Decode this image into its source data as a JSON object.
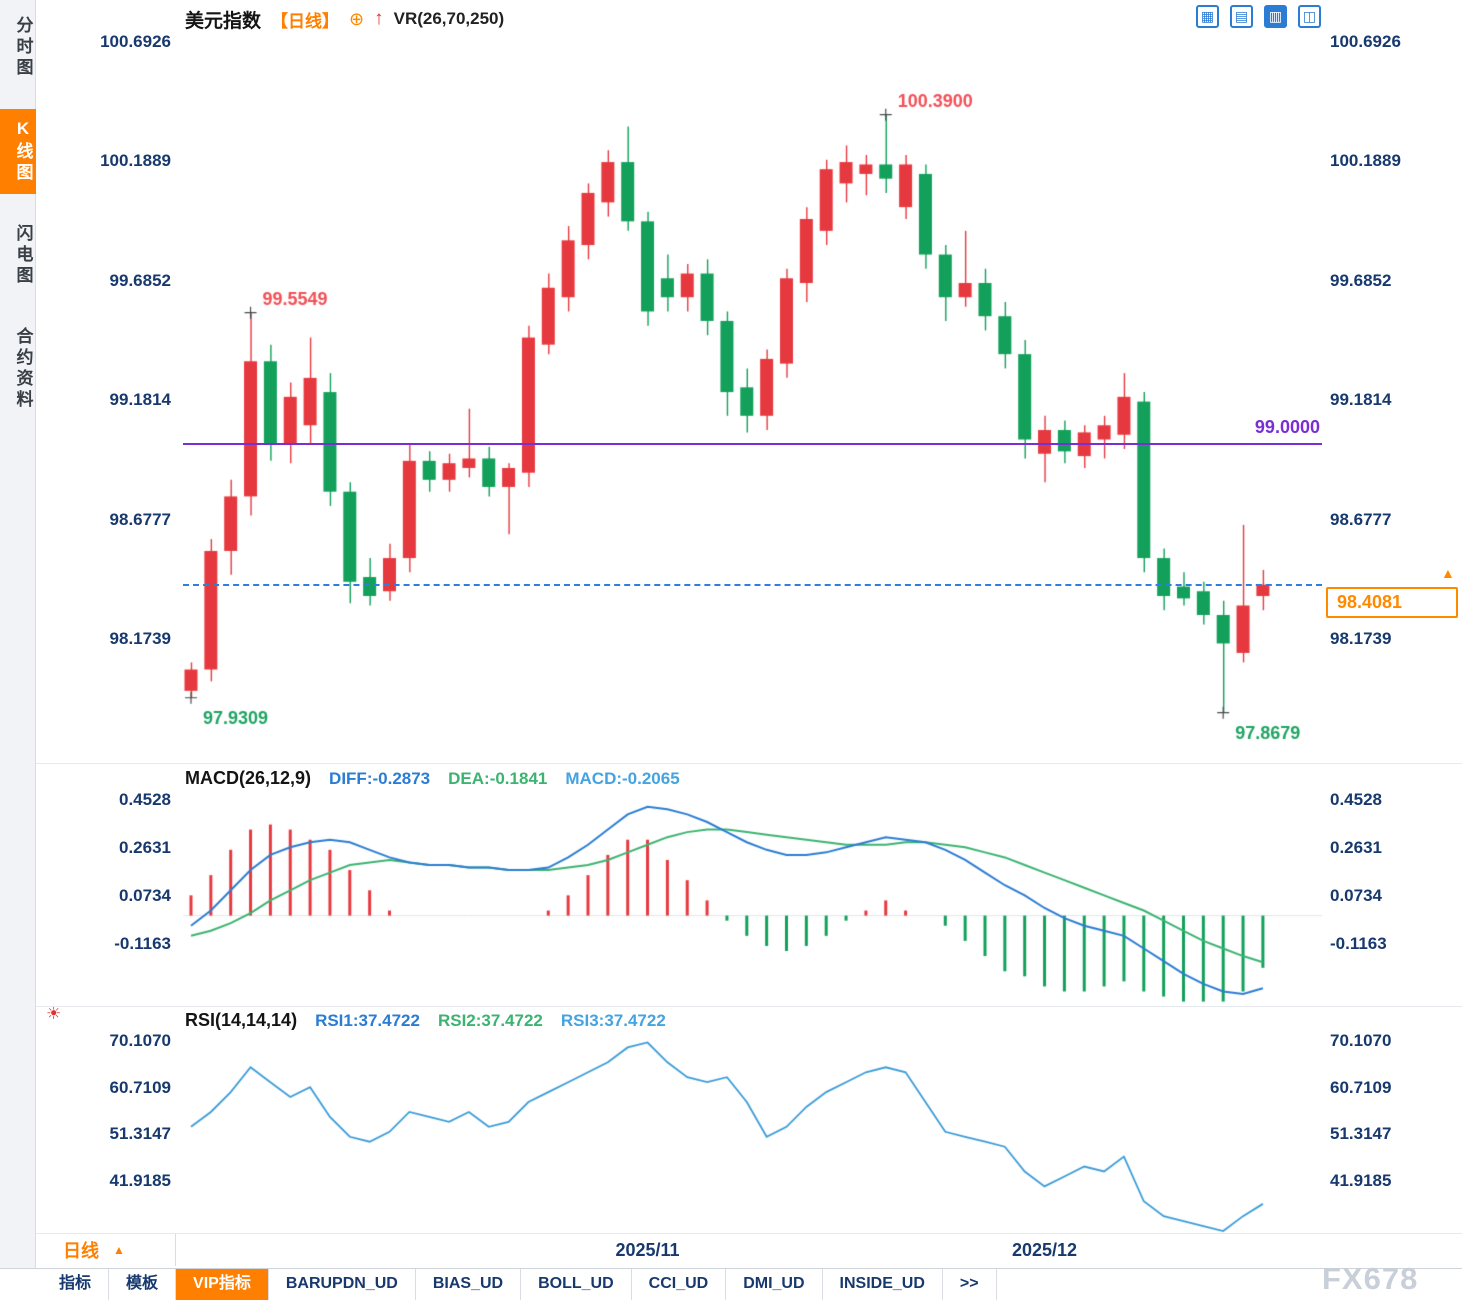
{
  "sidebar": {
    "items": [
      {
        "key": "intraday",
        "label": "分时图",
        "active": false
      },
      {
        "key": "kline",
        "label": "K线图",
        "active": true
      },
      {
        "key": "flash",
        "label": "闪电图",
        "active": false
      },
      {
        "key": "contract-info",
        "label": "合约资料",
        "active": false
      }
    ]
  },
  "header": {
    "title": "美元指数",
    "period_tag": "【日线】",
    "plus_icon": "⊕",
    "arrow_icon": "↑",
    "vr_label": "VR(26,70,250)"
  },
  "toolbar": {
    "icons": [
      {
        "key": "layout-grid",
        "glyph": "▦",
        "active": false
      },
      {
        "key": "layout-rows",
        "glyph": "▤",
        "active": false
      },
      {
        "key": "layout-chart",
        "glyph": "▥",
        "active": true
      },
      {
        "key": "layout-columns",
        "glyph": "◫",
        "active": false
      }
    ]
  },
  "price_overlay": {
    "purple_line": {
      "value": 99.0,
      "label": "99.0000"
    },
    "last_price": {
      "value": 98.4081,
      "label": "98.4081",
      "arrow": "▲"
    }
  },
  "footer": {
    "period_selector": {
      "label": "日线",
      "arrow": "▲"
    },
    "tabs": [
      {
        "label": "指标",
        "active": false
      },
      {
        "label": "模板",
        "active": false
      },
      {
        "label": "VIP指标",
        "active": true
      },
      {
        "label": "BARUPDN_UD",
        "active": false
      },
      {
        "label": "BIAS_UD",
        "active": false
      },
      {
        "label": "BOLL_UD",
        "active": false
      },
      {
        "label": "CCI_UD",
        "active": false
      },
      {
        "label": "DMI_UD",
        "active": false
      },
      {
        "label": "INSIDE_UD",
        "active": false
      },
      {
        "label": ">>",
        "active": false
      }
    ],
    "watermark": "FX678"
  },
  "misc": {
    "sun_icon": "☀"
  },
  "colors": {
    "candle_up": "#e6393f",
    "candle_down": "#12a05a",
    "diff_line": "#2b7cd3",
    "dea_line": "#3cb371",
    "rsi_line": "#3b9bd8",
    "axis_text": "#17396e",
    "accent_orange": "#ff7f00",
    "purple_line": "#7a2fd6",
    "dashed_line": "#2e7ee0",
    "annotation_up": "#f25056",
    "annotation_down": "#1fa463"
  },
  "chart_data": [
    {
      "type": "candlestick",
      "name": "美元指数 日线",
      "y_ticks": [
        "100.6926",
        "100.1889",
        "99.6852",
        "99.1814",
        "98.6777",
        "98.1739"
      ],
      "ylim": [
        97.66,
        100.747
      ],
      "x_labels": [
        {
          "label": "2025/11",
          "index": 23
        },
        {
          "label": "2025/12",
          "index": 43
        }
      ],
      "hlines": [
        {
          "value": 99.0,
          "label": "99.0000",
          "style": "solid"
        },
        {
          "value": 98.4081,
          "label": "98.4081",
          "style": "dashed"
        }
      ],
      "annotations": [
        {
          "label": "99.5549",
          "index": 3,
          "at": "high",
          "role": "up"
        },
        {
          "label": "100.3900",
          "index": 35,
          "at": "high",
          "role": "up"
        },
        {
          "label": "97.9309",
          "index": 0,
          "at": "low",
          "role": "down"
        },
        {
          "label": "97.8679",
          "index": 52,
          "at": "low",
          "role": "down"
        }
      ],
      "candles": [
        [
          97.96,
          98.08,
          97.9309,
          98.05
        ],
        [
          98.05,
          98.6,
          98.0,
          98.55
        ],
        [
          98.55,
          98.85,
          98.45,
          98.78
        ],
        [
          98.78,
          99.5549,
          98.7,
          99.35
        ],
        [
          99.35,
          99.42,
          98.93,
          99.0
        ],
        [
          99.0,
          99.26,
          98.92,
          99.2
        ],
        [
          99.08,
          99.45,
          99.0,
          99.28
        ],
        [
          99.22,
          99.3,
          98.74,
          98.8
        ],
        [
          98.8,
          98.84,
          98.33,
          98.42
        ],
        [
          98.44,
          98.52,
          98.32,
          98.36
        ],
        [
          98.38,
          98.58,
          98.34,
          98.52
        ],
        [
          98.52,
          99.0,
          98.46,
          98.93
        ],
        [
          98.93,
          98.97,
          98.8,
          98.85
        ],
        [
          98.85,
          98.96,
          98.8,
          98.92
        ],
        [
          98.9,
          99.15,
          98.86,
          98.94
        ],
        [
          98.94,
          98.99,
          98.78,
          98.82
        ],
        [
          98.82,
          98.92,
          98.62,
          98.9
        ],
        [
          98.88,
          99.5,
          98.82,
          99.45
        ],
        [
          99.42,
          99.72,
          99.38,
          99.66
        ],
        [
          99.62,
          99.92,
          99.56,
          99.86
        ],
        [
          99.84,
          100.1,
          99.78,
          100.06
        ],
        [
          100.02,
          100.24,
          99.96,
          100.19
        ],
        [
          100.19,
          100.34,
          99.9,
          99.94
        ],
        [
          99.94,
          99.98,
          99.5,
          99.56
        ],
        [
          99.7,
          99.8,
          99.56,
          99.62
        ],
        [
          99.62,
          99.76,
          99.56,
          99.72
        ],
        [
          99.72,
          99.78,
          99.46,
          99.52
        ],
        [
          99.52,
          99.56,
          99.12,
          99.22
        ],
        [
          99.24,
          99.32,
          99.05,
          99.12
        ],
        [
          99.12,
          99.4,
          99.06,
          99.36
        ],
        [
          99.34,
          99.74,
          99.28,
          99.7
        ],
        [
          99.68,
          100.0,
          99.6,
          99.95
        ],
        [
          99.9,
          100.2,
          99.84,
          100.16
        ],
        [
          100.1,
          100.26,
          100.02,
          100.19
        ],
        [
          100.14,
          100.22,
          100.05,
          100.18
        ],
        [
          100.18,
          100.39,
          100.06,
          100.12
        ],
        [
          100.0,
          100.22,
          99.95,
          100.18
        ],
        [
          100.14,
          100.18,
          99.74,
          99.8
        ],
        [
          99.8,
          99.84,
          99.52,
          99.62
        ],
        [
          99.62,
          99.9,
          99.58,
          99.68
        ],
        [
          99.68,
          99.74,
          99.48,
          99.54
        ],
        [
          99.54,
          99.6,
          99.32,
          99.38
        ],
        [
          99.38,
          99.44,
          98.94,
          99.02
        ],
        [
          98.96,
          99.12,
          98.84,
          99.06
        ],
        [
          99.06,
          99.1,
          98.92,
          98.97
        ],
        [
          98.95,
          99.08,
          98.9,
          99.05
        ],
        [
          99.02,
          99.12,
          98.94,
          99.08
        ],
        [
          99.04,
          99.3,
          98.98,
          99.2
        ],
        [
          99.18,
          99.22,
          98.46,
          98.52
        ],
        [
          98.52,
          98.56,
          98.3,
          98.36
        ],
        [
          98.4,
          98.46,
          98.32,
          98.35
        ],
        [
          98.38,
          98.42,
          98.24,
          98.28
        ],
        [
          98.28,
          98.34,
          97.8679,
          98.16
        ],
        [
          98.12,
          98.66,
          98.08,
          98.32
        ],
        [
          98.36,
          98.47,
          98.3,
          98.4081
        ]
      ]
    },
    {
      "type": "macd",
      "title": "MACD(26,12,9)",
      "legend": [
        {
          "label": "DIFF:-0.2873",
          "color": "#2b7cd3"
        },
        {
          "label": "DEA:-0.1841",
          "color": "#3cb371"
        },
        {
          "label": "MACD:-0.2065",
          "color": "#45a3e0"
        }
      ],
      "y_ticks": [
        "0.4528",
        "0.2631",
        "0.0734",
        "-0.1163"
      ],
      "ylim": [
        -0.3534,
        0.5676
      ],
      "hist_rule": "2*(diff-dea)",
      "diff": [
        -0.04,
        0.02,
        0.1,
        0.18,
        0.24,
        0.27,
        0.29,
        0.3,
        0.29,
        0.26,
        0.23,
        0.21,
        0.2,
        0.2,
        0.19,
        0.19,
        0.18,
        0.18,
        0.19,
        0.23,
        0.28,
        0.34,
        0.4,
        0.43,
        0.42,
        0.4,
        0.37,
        0.33,
        0.29,
        0.26,
        0.24,
        0.24,
        0.25,
        0.27,
        0.29,
        0.31,
        0.3,
        0.29,
        0.26,
        0.22,
        0.17,
        0.12,
        0.08,
        0.03,
        -0.01,
        -0.04,
        -0.06,
        -0.08,
        -0.13,
        -0.18,
        -0.23,
        -0.27,
        -0.3,
        -0.31,
        -0.2873
      ],
      "dea": [
        -0.08,
        -0.06,
        -0.03,
        0.01,
        0.06,
        0.1,
        0.14,
        0.17,
        0.2,
        0.21,
        0.22,
        0.21,
        0.2,
        0.2,
        0.19,
        0.19,
        0.18,
        0.18,
        0.18,
        0.19,
        0.2,
        0.22,
        0.25,
        0.28,
        0.31,
        0.33,
        0.34,
        0.34,
        0.33,
        0.32,
        0.31,
        0.3,
        0.29,
        0.28,
        0.28,
        0.28,
        0.29,
        0.29,
        0.28,
        0.27,
        0.25,
        0.23,
        0.2,
        0.17,
        0.14,
        0.11,
        0.08,
        0.05,
        0.02,
        -0.02,
        -0.06,
        -0.1,
        -0.13,
        -0.16,
        -0.1841
      ]
    },
    {
      "type": "line",
      "title": "RSI(14,14,14)",
      "legend": [
        {
          "label": "RSI1:37.4722",
          "color": "#2b7cd3"
        },
        {
          "label": "RSI2:37.4722",
          "color": "#3cb371"
        },
        {
          "label": "RSI3:37.4722",
          "color": "#45a3e0"
        }
      ],
      "y_ticks": [
        "70.1070",
        "60.7109",
        "51.3147",
        "41.9185"
      ],
      "ylim": [
        31.6,
        71.51
      ],
      "values": [
        53,
        56,
        60,
        65,
        62,
        59,
        61,
        55,
        51,
        50,
        52,
        56,
        55,
        54,
        56,
        53,
        54,
        58,
        60,
        62,
        64,
        66,
        69,
        70,
        66,
        63,
        62,
        63,
        58,
        51,
        53,
        57,
        60,
        62,
        64,
        65,
        64,
        58,
        52,
        51,
        50,
        49,
        44,
        41,
        43,
        45,
        44,
        47,
        38,
        35,
        34,
        33,
        32,
        35,
        37.4722
      ]
    }
  ]
}
